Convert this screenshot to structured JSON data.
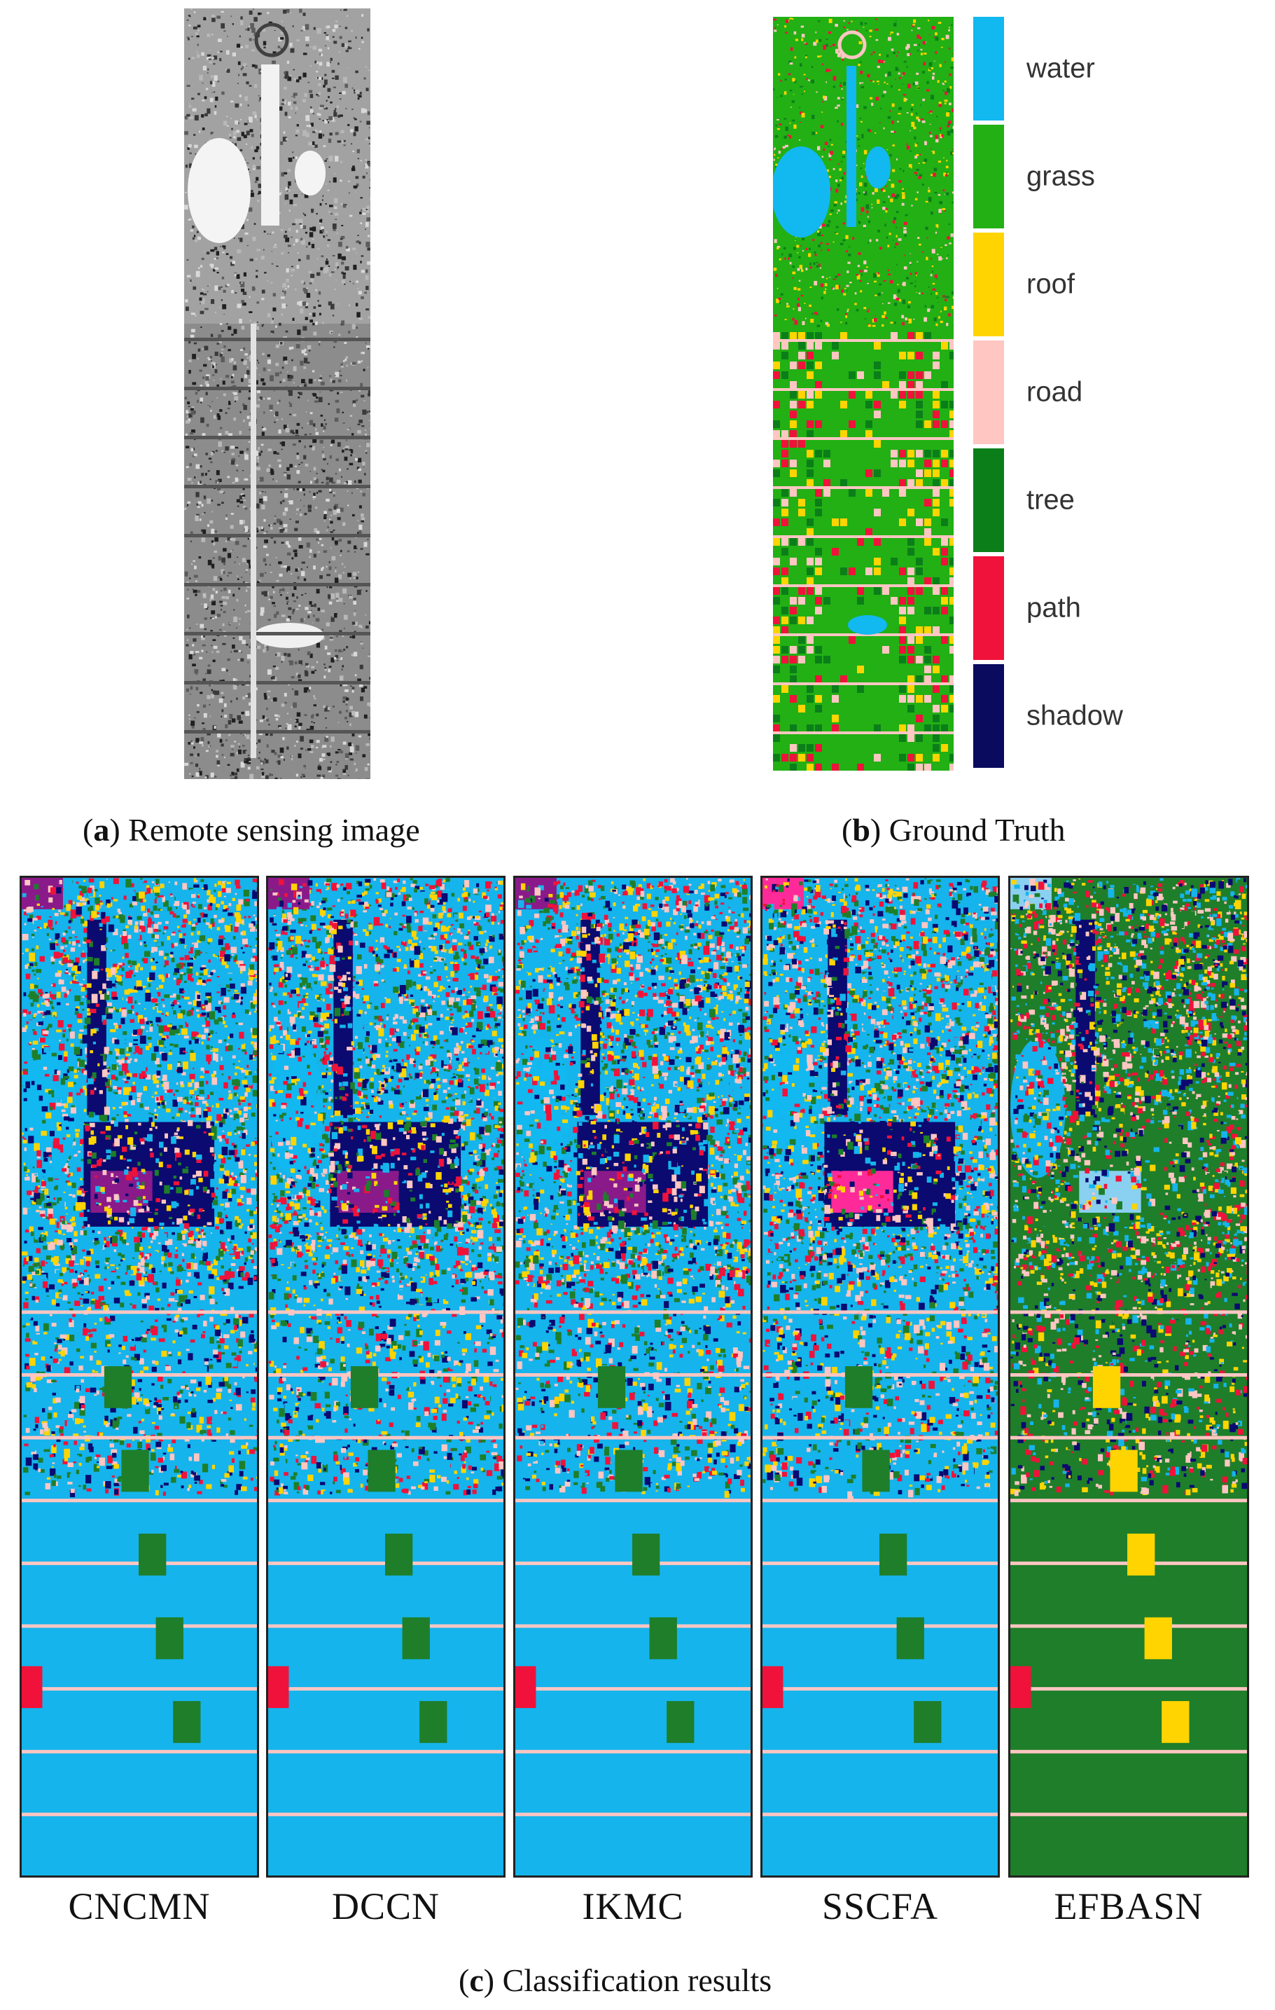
{
  "figure": {
    "panel_a": {
      "letter": "a",
      "caption": "Remote sensing image"
    },
    "panel_b": {
      "letter": "b",
      "caption": "Ground Truth"
    },
    "panel_c": {
      "letter": "c",
      "caption": "Classification results"
    }
  },
  "legend": [
    {
      "label": "water",
      "color": "#12b8f0"
    },
    {
      "label": "grass",
      "color": "#22b014"
    },
    {
      "label": "roof",
      "color": "#ffd400"
    },
    {
      "label": "road",
      "color": "#ffc6c2"
    },
    {
      "label": "tree",
      "color": "#0b7e1a"
    },
    {
      "label": "path",
      "color": "#f0123a"
    },
    {
      "label": "shadow",
      "color": "#0a0a5e"
    }
  ],
  "methods": [
    {
      "name": "CNCMN",
      "palette": [
        "#15b4ec",
        "#ffd400",
        "#1e7e2a",
        "#ffc6c2",
        "#f0123a",
        "#0a0a70",
        "#8a1a8a"
      ]
    },
    {
      "name": "DCCN",
      "palette": [
        "#15b4ec",
        "#ffd400",
        "#1e7e2a",
        "#ffc6c2",
        "#f0123a",
        "#0a0a70",
        "#8a1a8a"
      ]
    },
    {
      "name": "IKMC",
      "palette": [
        "#15b4ec",
        "#ffd400",
        "#1e7e2a",
        "#ffc6c2",
        "#f0123a",
        "#0a0a70",
        "#8a1a8a"
      ]
    },
    {
      "name": "SSCFA",
      "palette": [
        "#15b4ec",
        "#ffd400",
        "#1e7e2a",
        "#ffc6c2",
        "#f0123a",
        "#0a0a70",
        "#ff2a9a"
      ]
    },
    {
      "name": "EFBASN",
      "palette": [
        "#1e7e2a",
        "#15b4ec",
        "#ffd400",
        "#ffc6c2",
        "#f0123a",
        "#0a0a70",
        "#8ad0f0"
      ]
    }
  ]
}
